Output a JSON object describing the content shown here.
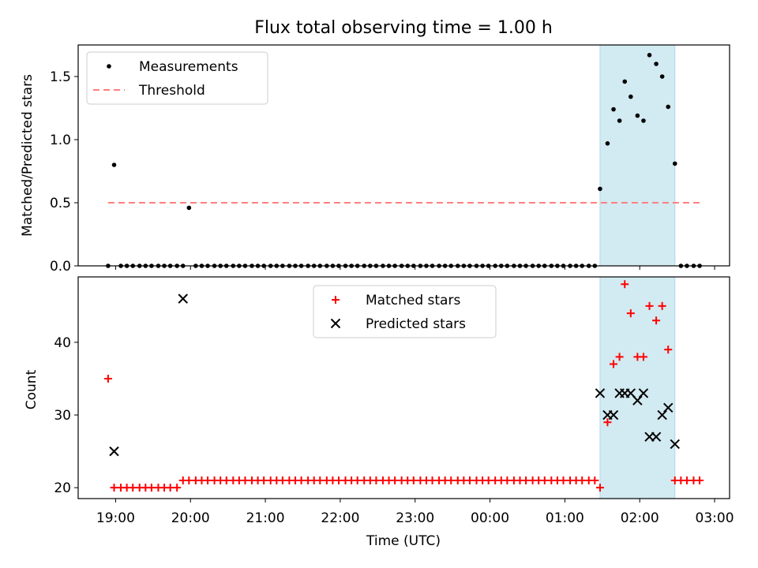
{
  "chart_data": [
    {
      "type": "scatter",
      "title": "Flux total observing time = 1.00 h",
      "xlabel": "",
      "ylabel": "Matched/Predicted stars",
      "ylim": [
        0,
        1.75
      ],
      "yticks": [
        0.0,
        0.5,
        1.0,
        1.5
      ],
      "ytick_labels": [
        "0.0",
        "0.5",
        "1.0",
        "1.5"
      ],
      "x_unit": "hours since 19:00 UTC",
      "xlim": [
        -0.5,
        8.2
      ],
      "shaded_span": [
        6.47,
        7.47
      ],
      "shade_color": "#add8e6",
      "legend": {
        "position": "upper-left",
        "entries": [
          "Measurements",
          "Threshold"
        ]
      },
      "series": [
        {
          "name": "Measurements",
          "marker": "dot",
          "color": "#000000",
          "x": [
            -0.1,
            -0.02,
            0.07,
            0.15,
            0.23,
            0.32,
            0.4,
            0.48,
            0.57,
            0.65,
            0.73,
            0.82,
            0.9,
            0.98,
            1.07,
            1.15,
            1.23,
            1.32,
            1.4,
            1.48,
            1.57,
            1.65,
            1.73,
            1.82,
            1.9,
            1.98,
            2.07,
            2.15,
            2.23,
            2.32,
            2.4,
            2.48,
            2.57,
            2.65,
            2.73,
            2.82,
            2.9,
            2.98,
            3.07,
            3.15,
            3.23,
            3.32,
            3.4,
            3.48,
            3.57,
            3.65,
            3.73,
            3.82,
            3.9,
            3.98,
            4.07,
            4.15,
            4.23,
            4.32,
            4.4,
            4.48,
            4.57,
            4.65,
            4.73,
            4.82,
            4.9,
            4.98,
            5.07,
            5.15,
            5.23,
            5.32,
            5.4,
            5.48,
            5.57,
            5.65,
            5.73,
            5.82,
            5.9,
            5.98,
            6.07,
            6.15,
            6.23,
            6.32,
            6.4,
            6.47,
            6.57,
            6.65,
            6.73,
            6.8,
            6.88,
            6.97,
            7.05,
            7.13,
            7.22,
            7.3,
            7.38,
            7.47,
            7.55,
            7.63,
            7.72,
            7.8
          ],
          "y": [
            0.0,
            0.8,
            0.0,
            0.0,
            0.0,
            0.0,
            0.0,
            0.0,
            0.0,
            0.0,
            0.0,
            0.0,
            0.0,
            0.46,
            0.0,
            0.0,
            0.0,
            0.0,
            0.0,
            0.0,
            0.0,
            0.0,
            0.0,
            0.0,
            0.0,
            0.0,
            0.0,
            0.0,
            0.0,
            0.0,
            0.0,
            0.0,
            0.0,
            0.0,
            0.0,
            0.0,
            0.0,
            0.0,
            0.0,
            0.0,
            0.0,
            0.0,
            0.0,
            0.0,
            0.0,
            0.0,
            0.0,
            0.0,
            0.0,
            0.0,
            0.0,
            0.0,
            0.0,
            0.0,
            0.0,
            0.0,
            0.0,
            0.0,
            0.0,
            0.0,
            0.0,
            0.0,
            0.0,
            0.0,
            0.0,
            0.0,
            0.0,
            0.0,
            0.0,
            0.0,
            0.0,
            0.0,
            0.0,
            0.0,
            0.0,
            0.0,
            0.0,
            0.0,
            0.0,
            0.61,
            0.97,
            1.24,
            1.15,
            1.46,
            1.34,
            1.19,
            1.15,
            1.67,
            1.6,
            1.5,
            1.26,
            0.81,
            0.0,
            0.0,
            0.0,
            0.0
          ]
        },
        {
          "name": "Threshold",
          "marker": "dashed-line",
          "color": "#ff7f7f",
          "x": [
            -0.1,
            7.8
          ],
          "y": [
            0.5,
            0.5
          ]
        }
      ]
    },
    {
      "type": "scatter",
      "title": "",
      "xlabel": "Time (UTC)",
      "ylabel": "Count",
      "ylim": [
        18.5,
        49.0
      ],
      "yticks": [
        20,
        30,
        40
      ],
      "ytick_labels": [
        "20",
        "30",
        "40"
      ],
      "x_unit": "hours since 19:00 UTC",
      "xlim": [
        -0.5,
        8.2
      ],
      "xticks": [
        0,
        1,
        2,
        3,
        4,
        5,
        6,
        7,
        8
      ],
      "xtick_labels": [
        "19:00",
        "20:00",
        "21:00",
        "22:00",
        "23:00",
        "00:00",
        "01:00",
        "02:00",
        "03:00"
      ],
      "shaded_span": [
        6.47,
        7.47
      ],
      "shade_color": "#add8e6",
      "legend": {
        "position": "upper-center",
        "entries": [
          "Matched stars",
          "Predicted stars"
        ]
      },
      "series": [
        {
          "name": "Matched stars",
          "marker": "plus",
          "color": "#ff0000",
          "x": [
            -0.1,
            -0.02,
            0.07,
            0.15,
            0.23,
            0.32,
            0.4,
            0.48,
            0.57,
            0.65,
            0.73,
            0.82,
            0.9,
            0.98,
            1.07,
            1.15,
            1.23,
            1.32,
            1.4,
            1.48,
            1.57,
            1.65,
            1.73,
            1.82,
            1.9,
            1.98,
            2.07,
            2.15,
            2.23,
            2.32,
            2.4,
            2.48,
            2.57,
            2.65,
            2.73,
            2.82,
            2.9,
            2.98,
            3.07,
            3.15,
            3.23,
            3.32,
            3.4,
            3.48,
            3.57,
            3.65,
            3.73,
            3.82,
            3.9,
            3.98,
            4.07,
            4.15,
            4.23,
            4.32,
            4.4,
            4.48,
            4.57,
            4.65,
            4.73,
            4.82,
            4.9,
            4.98,
            5.07,
            5.15,
            5.23,
            5.32,
            5.4,
            5.48,
            5.57,
            5.65,
            5.73,
            5.82,
            5.9,
            5.98,
            6.07,
            6.15,
            6.23,
            6.32,
            6.4,
            6.47,
            6.57,
            6.65,
            6.73,
            6.8,
            6.88,
            6.97,
            7.05,
            7.13,
            7.22,
            7.3,
            7.38,
            7.47,
            7.55,
            7.63,
            7.72,
            7.8
          ],
          "y": [
            35,
            20,
            20,
            20,
            20,
            20,
            20,
            20,
            20,
            20,
            20,
            20,
            21,
            21,
            21,
            21,
            21,
            21,
            21,
            21,
            21,
            21,
            21,
            21,
            21,
            21,
            21,
            21,
            21,
            21,
            21,
            21,
            21,
            21,
            21,
            21,
            21,
            21,
            21,
            21,
            21,
            21,
            21,
            21,
            21,
            21,
            21,
            21,
            21,
            21,
            21,
            21,
            21,
            21,
            21,
            21,
            21,
            21,
            21,
            21,
            21,
            21,
            21,
            21,
            21,
            21,
            21,
            21,
            21,
            21,
            21,
            21,
            21,
            21,
            21,
            21,
            21,
            21,
            21,
            20,
            29,
            37,
            38,
            48,
            44,
            38,
            38,
            45,
            43,
            45,
            39,
            21,
            21,
            21,
            21,
            21
          ]
        },
        {
          "name": "Predicted stars",
          "marker": "x",
          "color": "#000000",
          "x": [
            -0.02,
            0.9,
            6.47,
            6.57,
            6.65,
            6.73,
            6.8,
            6.88,
            6.97,
            7.05,
            7.13,
            7.22,
            7.3,
            7.38,
            7.47
          ],
          "y": [
            25,
            46,
            33,
            30,
            30,
            33,
            33,
            33,
            32,
            33,
            27,
            27,
            30,
            31,
            26
          ]
        }
      ]
    }
  ]
}
